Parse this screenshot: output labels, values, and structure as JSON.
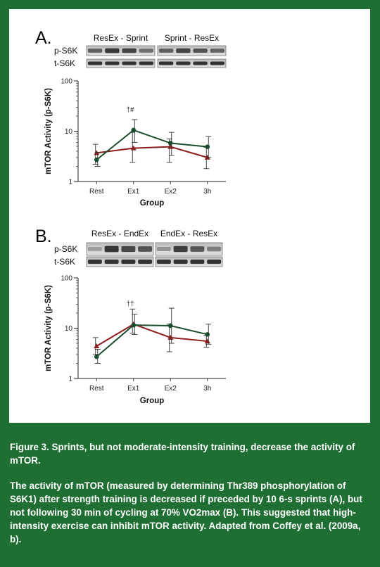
{
  "caption": {
    "title": "Figure 3. Sprints, but not moderate-intensity training, decrease the activity of mTOR.",
    "body": "The activity of mTOR (measured by determining Thr389 phosphorylation of S6K1) after strength training is decreased if preceded by 10 6-s sprints (A), but not following 30 min of cycling at 70% VO2max (B). This suggested that high-intensity exercise can inhibit mTOR activity. Adapted from Coffey et al. (2009a, b)."
  },
  "colors": {
    "frame": "#1f6e34",
    "series_green": "#1a4d2e",
    "series_red": "#8c1d1d"
  },
  "chart_data": [
    {
      "panel": "A.",
      "type": "line",
      "blot": {
        "group_labels": [
          "ResEx - Sprint",
          "Sprint - ResEx"
        ],
        "row_labels": [
          "p-S6K",
          "t-S6K"
        ]
      },
      "categories": [
        "Rest",
        "Ex1",
        "Ex2",
        "3h"
      ],
      "xlabel": "Group",
      "ylabel": "mTOR Activity (p-S6K)",
      "yscale": "log",
      "ylim": [
        1,
        100
      ],
      "yticks": [
        "1",
        "10",
        "100"
      ],
      "annotation": "†#",
      "series": [
        {
          "color": "#1a4d2e",
          "marker": "circle",
          "values": [
            2.7,
            10.5,
            5.8,
            4.9
          ],
          "err_low": [
            2.0,
            6.0,
            3.3,
            3.0
          ],
          "err_high": [
            3.8,
            17.0,
            9.5,
            7.8
          ]
        },
        {
          "color": "#8c1d1d",
          "marker": "triangle",
          "values": [
            3.7,
            4.6,
            4.9,
            3.0
          ],
          "err_low": [
            2.2,
            2.4,
            2.4,
            1.8
          ],
          "err_high": [
            5.5,
            9.5,
            7.0,
            4.8
          ]
        }
      ]
    },
    {
      "panel": "B.",
      "type": "line",
      "blot": {
        "group_labels": [
          "ResEx - EndEx",
          "EndEx - ResEx"
        ],
        "row_labels": [
          "p-S6K",
          "t-S6K"
        ]
      },
      "categories": [
        "Rest",
        "Ex1",
        "Ex2",
        "3h"
      ],
      "xlabel": "Group",
      "ylabel": "mTOR Activity (p-S6K)",
      "yscale": "log",
      "ylim": [
        1,
        100
      ],
      "yticks": [
        "1",
        "10",
        "100"
      ],
      "annotation": "††",
      "series": [
        {
          "color": "#1a4d2e",
          "marker": "circle",
          "values": [
            2.7,
            11.5,
            11.2,
            7.5
          ],
          "err_low": [
            2.0,
            7.5,
            5.0,
            4.8
          ],
          "err_high": [
            3.8,
            19.0,
            25.0,
            12.0
          ]
        },
        {
          "color": "#8c1d1d",
          "marker": "triangle",
          "values": [
            4.4,
            12.0,
            6.5,
            5.5
          ],
          "err_low": [
            3.0,
            8.0,
            3.4,
            4.2
          ],
          "err_high": [
            6.5,
            24.0,
            12.0,
            7.2
          ]
        }
      ]
    }
  ]
}
